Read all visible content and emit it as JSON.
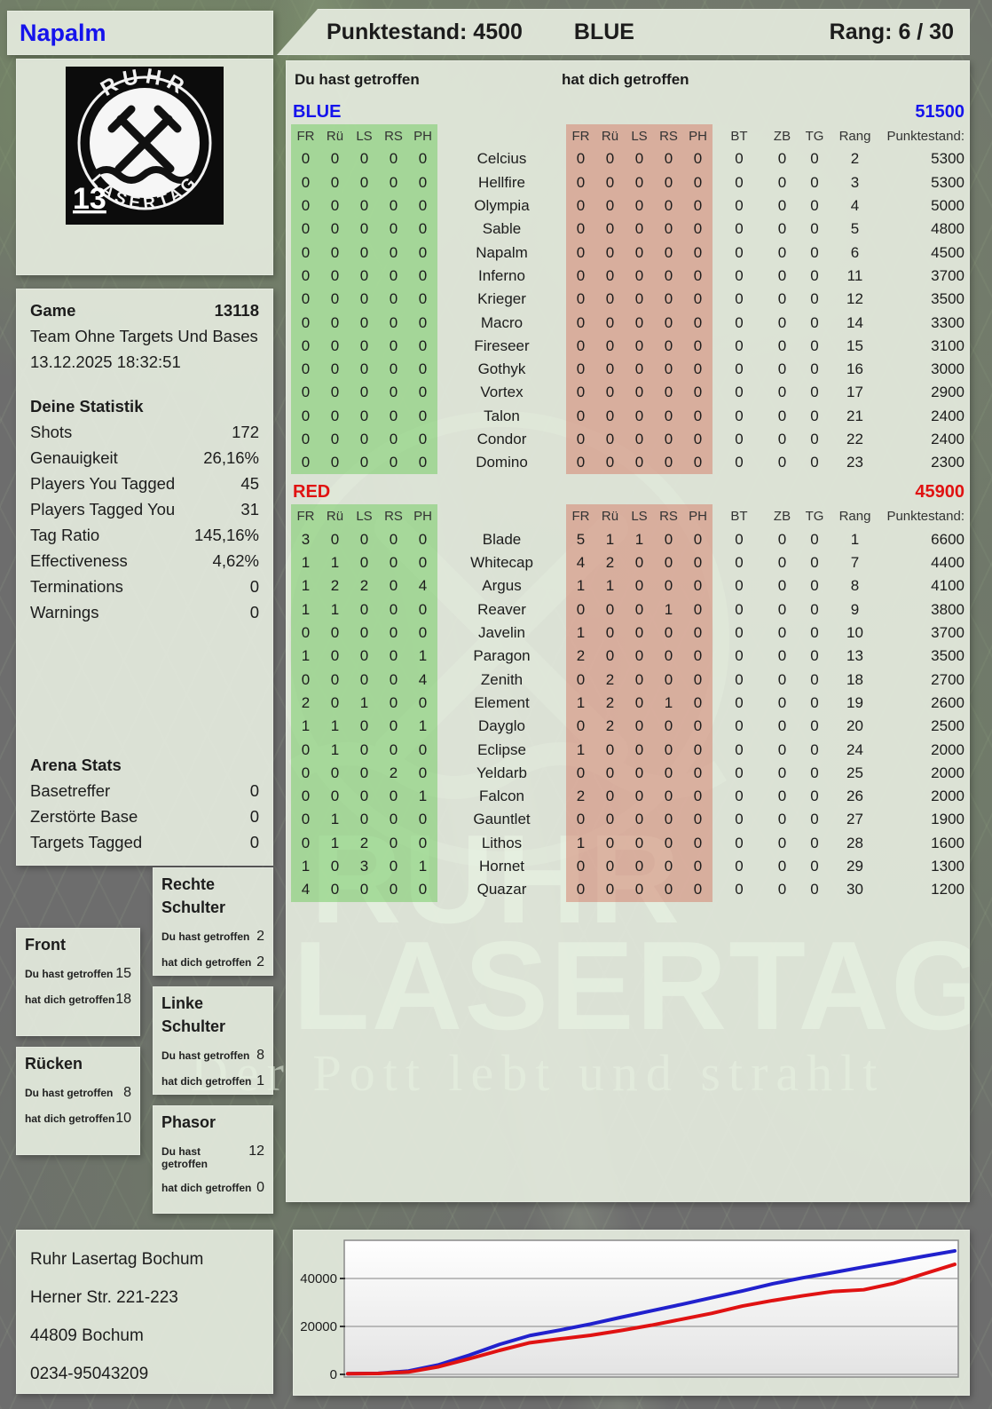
{
  "header": {
    "player": "Napalm",
    "punktestand": "Punktestand: 4500",
    "team": "BLUE",
    "rang": "Rang: 6 / 30"
  },
  "logo": {
    "arc_top": "RUHR",
    "arc_bottom": "LASERTAG",
    "badge": "13"
  },
  "game": {
    "label": "Game",
    "number": "13118",
    "mode": "Team Ohne Targets Und Bases",
    "datetime": "13.12.2025 18:32:51"
  },
  "stats": {
    "title": "Deine Statistik",
    "rows": [
      [
        "Shots",
        "172"
      ],
      [
        "Genauigkeit",
        "26,16%"
      ],
      [
        "Players You Tagged",
        "45"
      ],
      [
        "Players Tagged You",
        "31"
      ],
      [
        "Tag Ratio",
        "145,16%"
      ],
      [
        "Effectiveness",
        "4,62%"
      ],
      [
        "Terminations",
        "0"
      ],
      [
        "Warnings",
        "0"
      ]
    ]
  },
  "arena": {
    "title": "Arena Stats",
    "rows": [
      [
        "Basetreffer",
        "0"
      ],
      [
        "Zerstörte Base",
        "0"
      ],
      [
        "Targets Tagged",
        "0"
      ]
    ]
  },
  "hit_zones": {
    "you_label": "Du hast getroffen",
    "them_label": "hat dich getroffen",
    "boxes": [
      {
        "title": "Rechte Schulter",
        "you": "2",
        "them": "2"
      },
      {
        "title": "Front",
        "you": "15",
        "them": "18"
      },
      {
        "title": "Linke Schulter",
        "you": "8",
        "them": "1"
      },
      {
        "title": "Rücken",
        "you": "8",
        "them": "10"
      },
      {
        "title": "Phasor",
        "you": "12",
        "them": "0"
      }
    ]
  },
  "table": {
    "you_header": "Du hast getroffen",
    "them_header": "hat dich getroffen",
    "hit_cols": [
      "FR",
      "Rü",
      "LS",
      "RS",
      "PH"
    ],
    "extra_cols": [
      "BT",
      "ZB",
      "TG",
      "Rang",
      "Punktestand:"
    ],
    "sections": [
      {
        "name": "BLUE",
        "color": "#1513ec",
        "total": "51500",
        "rows": [
          {
            "player": "Celcius",
            "you": [
              0,
              0,
              0,
              0,
              0
            ],
            "them": [
              0,
              0,
              0,
              0,
              0
            ],
            "bt": 0,
            "zb": 0,
            "tg": 0,
            "rang": 2,
            "punkte": 5300
          },
          {
            "player": "Hellfire",
            "you": [
              0,
              0,
              0,
              0,
              0
            ],
            "them": [
              0,
              0,
              0,
              0,
              0
            ],
            "bt": 0,
            "zb": 0,
            "tg": 0,
            "rang": 3,
            "punkte": 5300
          },
          {
            "player": "Olympia",
            "you": [
              0,
              0,
              0,
              0,
              0
            ],
            "them": [
              0,
              0,
              0,
              0,
              0
            ],
            "bt": 0,
            "zb": 0,
            "tg": 0,
            "rang": 4,
            "punkte": 5000
          },
          {
            "player": "Sable",
            "you": [
              0,
              0,
              0,
              0,
              0
            ],
            "them": [
              0,
              0,
              0,
              0,
              0
            ],
            "bt": 0,
            "zb": 0,
            "tg": 0,
            "rang": 5,
            "punkte": 4800
          },
          {
            "player": "Napalm",
            "you": [
              0,
              0,
              0,
              0,
              0
            ],
            "them": [
              0,
              0,
              0,
              0,
              0
            ],
            "bt": 0,
            "zb": 0,
            "tg": 0,
            "rang": 6,
            "punkte": 4500
          },
          {
            "player": "Inferno",
            "you": [
              0,
              0,
              0,
              0,
              0
            ],
            "them": [
              0,
              0,
              0,
              0,
              0
            ],
            "bt": 0,
            "zb": 0,
            "tg": 0,
            "rang": 11,
            "punkte": 3700
          },
          {
            "player": "Krieger",
            "you": [
              0,
              0,
              0,
              0,
              0
            ],
            "them": [
              0,
              0,
              0,
              0,
              0
            ],
            "bt": 0,
            "zb": 0,
            "tg": 0,
            "rang": 12,
            "punkte": 3500
          },
          {
            "player": "Macro",
            "you": [
              0,
              0,
              0,
              0,
              0
            ],
            "them": [
              0,
              0,
              0,
              0,
              0
            ],
            "bt": 0,
            "zb": 0,
            "tg": 0,
            "rang": 14,
            "punkte": 3300
          },
          {
            "player": "Fireseer",
            "you": [
              0,
              0,
              0,
              0,
              0
            ],
            "them": [
              0,
              0,
              0,
              0,
              0
            ],
            "bt": 0,
            "zb": 0,
            "tg": 0,
            "rang": 15,
            "punkte": 3100
          },
          {
            "player": "Gothyk",
            "you": [
              0,
              0,
              0,
              0,
              0
            ],
            "them": [
              0,
              0,
              0,
              0,
              0
            ],
            "bt": 0,
            "zb": 0,
            "tg": 0,
            "rang": 16,
            "punkte": 3000
          },
          {
            "player": "Vortex",
            "you": [
              0,
              0,
              0,
              0,
              0
            ],
            "them": [
              0,
              0,
              0,
              0,
              0
            ],
            "bt": 0,
            "zb": 0,
            "tg": 0,
            "rang": 17,
            "punkte": 2900
          },
          {
            "player": "Talon",
            "you": [
              0,
              0,
              0,
              0,
              0
            ],
            "them": [
              0,
              0,
              0,
              0,
              0
            ],
            "bt": 0,
            "zb": 0,
            "tg": 0,
            "rang": 21,
            "punkte": 2400
          },
          {
            "player": "Condor",
            "you": [
              0,
              0,
              0,
              0,
              0
            ],
            "them": [
              0,
              0,
              0,
              0,
              0
            ],
            "bt": 0,
            "zb": 0,
            "tg": 0,
            "rang": 22,
            "punkte": 2400
          },
          {
            "player": "Domino",
            "you": [
              0,
              0,
              0,
              0,
              0
            ],
            "them": [
              0,
              0,
              0,
              0,
              0
            ],
            "bt": 0,
            "zb": 0,
            "tg": 0,
            "rang": 23,
            "punkte": 2300
          }
        ]
      },
      {
        "name": "RED",
        "color": "#e01212",
        "total": "45900",
        "rows": [
          {
            "player": "Blade",
            "you": [
              3,
              0,
              0,
              0,
              0
            ],
            "them": [
              5,
              1,
              1,
              0,
              0
            ],
            "bt": 0,
            "zb": 0,
            "tg": 0,
            "rang": 1,
            "punkte": 6600
          },
          {
            "player": "Whitecap",
            "you": [
              1,
              1,
              0,
              0,
              0
            ],
            "them": [
              4,
              2,
              0,
              0,
              0
            ],
            "bt": 0,
            "zb": 0,
            "tg": 0,
            "rang": 7,
            "punkte": 4400
          },
          {
            "player": "Argus",
            "you": [
              1,
              2,
              2,
              0,
              4
            ],
            "them": [
              1,
              1,
              0,
              0,
              0
            ],
            "bt": 0,
            "zb": 0,
            "tg": 0,
            "rang": 8,
            "punkte": 4100
          },
          {
            "player": "Reaver",
            "you": [
              1,
              1,
              0,
              0,
              0
            ],
            "them": [
              0,
              0,
              0,
              1,
              0
            ],
            "bt": 0,
            "zb": 0,
            "tg": 0,
            "rang": 9,
            "punkte": 3800
          },
          {
            "player": "Javelin",
            "you": [
              0,
              0,
              0,
              0,
              0
            ],
            "them": [
              1,
              0,
              0,
              0,
              0
            ],
            "bt": 0,
            "zb": 0,
            "tg": 0,
            "rang": 10,
            "punkte": 3700
          },
          {
            "player": "Paragon",
            "you": [
              1,
              0,
              0,
              0,
              1
            ],
            "them": [
              2,
              0,
              0,
              0,
              0
            ],
            "bt": 0,
            "zb": 0,
            "tg": 0,
            "rang": 13,
            "punkte": 3500
          },
          {
            "player": "Zenith",
            "you": [
              0,
              0,
              0,
              0,
              4
            ],
            "them": [
              0,
              2,
              0,
              0,
              0
            ],
            "bt": 0,
            "zb": 0,
            "tg": 0,
            "rang": 18,
            "punkte": 2700
          },
          {
            "player": "Element",
            "you": [
              2,
              0,
              1,
              0,
              0
            ],
            "them": [
              1,
              2,
              0,
              1,
              0
            ],
            "bt": 0,
            "zb": 0,
            "tg": 0,
            "rang": 19,
            "punkte": 2600
          },
          {
            "player": "Dayglo",
            "you": [
              1,
              1,
              0,
              0,
              1
            ],
            "them": [
              0,
              2,
              0,
              0,
              0
            ],
            "bt": 0,
            "zb": 0,
            "tg": 0,
            "rang": 20,
            "punkte": 2500
          },
          {
            "player": "Eclipse",
            "you": [
              0,
              1,
              0,
              0,
              0
            ],
            "them": [
              1,
              0,
              0,
              0,
              0
            ],
            "bt": 0,
            "zb": 0,
            "tg": 0,
            "rang": 24,
            "punkte": 2000
          },
          {
            "player": "Yeldarb",
            "you": [
              0,
              0,
              0,
              2,
              0
            ],
            "them": [
              0,
              0,
              0,
              0,
              0
            ],
            "bt": 0,
            "zb": 0,
            "tg": 0,
            "rang": 25,
            "punkte": 2000
          },
          {
            "player": "Falcon",
            "you": [
              0,
              0,
              0,
              0,
              1
            ],
            "them": [
              2,
              0,
              0,
              0,
              0
            ],
            "bt": 0,
            "zb": 0,
            "tg": 0,
            "rang": 26,
            "punkte": 2000
          },
          {
            "player": "Gauntlet",
            "you": [
              0,
              1,
              0,
              0,
              0
            ],
            "them": [
              0,
              0,
              0,
              0,
              0
            ],
            "bt": 0,
            "zb": 0,
            "tg": 0,
            "rang": 27,
            "punkte": 1900
          },
          {
            "player": "Lithos",
            "you": [
              0,
              1,
              2,
              0,
              0
            ],
            "them": [
              1,
              0,
              0,
              0,
              0
            ],
            "bt": 0,
            "zb": 0,
            "tg": 0,
            "rang": 28,
            "punkte": 1600
          },
          {
            "player": "Hornet",
            "you": [
              1,
              0,
              3,
              0,
              1
            ],
            "them": [
              0,
              0,
              0,
              0,
              0
            ],
            "bt": 0,
            "zb": 0,
            "tg": 0,
            "rang": 29,
            "punkte": 1300
          },
          {
            "player": "Quazar",
            "you": [
              4,
              0,
              0,
              0,
              0
            ],
            "them": [
              0,
              0,
              0,
              0,
              0
            ],
            "bt": 0,
            "zb": 0,
            "tg": 0,
            "rang": 30,
            "punkte": 1200
          }
        ]
      }
    ]
  },
  "watermark": {
    "line1": "RUHR",
    "line2": "LASERTAG",
    "tagline": "Der Pott lebt und strahlt"
  },
  "address": {
    "lines": [
      "Ruhr Lasertag Bochum",
      "Herner Str. 221-223",
      "44809 Bochum",
      "0234-95043209"
    ]
  },
  "chart_data": {
    "type": "line",
    "title": "",
    "xlabel": "",
    "ylabel": "",
    "grid": true,
    "legend": "none",
    "ylim": [
      0,
      54000
    ],
    "yticks": [
      0,
      20000,
      40000
    ],
    "xlim": [
      0,
      1
    ],
    "series": [
      {
        "name": "BLUE",
        "color": "#2121cd",
        "x": [
          0,
          0.05,
          0.1,
          0.15,
          0.2,
          0.25,
          0.3,
          0.35,
          0.4,
          0.45,
          0.5,
          0.55,
          0.6,
          0.65,
          0.7,
          0.75,
          0.8,
          0.85,
          0.9,
          0.95,
          1
        ],
        "y": [
          300,
          400,
          1400,
          4000,
          8000,
          12500,
          16200,
          18500,
          21000,
          23800,
          26500,
          29200,
          32000,
          34800,
          37800,
          40300,
          42500,
          44800,
          47000,
          49300,
          51500
        ]
      },
      {
        "name": "RED",
        "color": "#e01212",
        "x": [
          0,
          0.05,
          0.1,
          0.15,
          0.2,
          0.25,
          0.3,
          0.35,
          0.4,
          0.45,
          0.5,
          0.55,
          0.6,
          0.65,
          0.7,
          0.75,
          0.8,
          0.85,
          0.9,
          0.95,
          1
        ],
        "y": [
          300,
          350,
          1000,
          3200,
          6500,
          10000,
          13200,
          14800,
          16300,
          18300,
          20500,
          23000,
          25500,
          28500,
          30800,
          32800,
          34600,
          35300,
          38000,
          42000,
          45900
        ]
      }
    ]
  }
}
